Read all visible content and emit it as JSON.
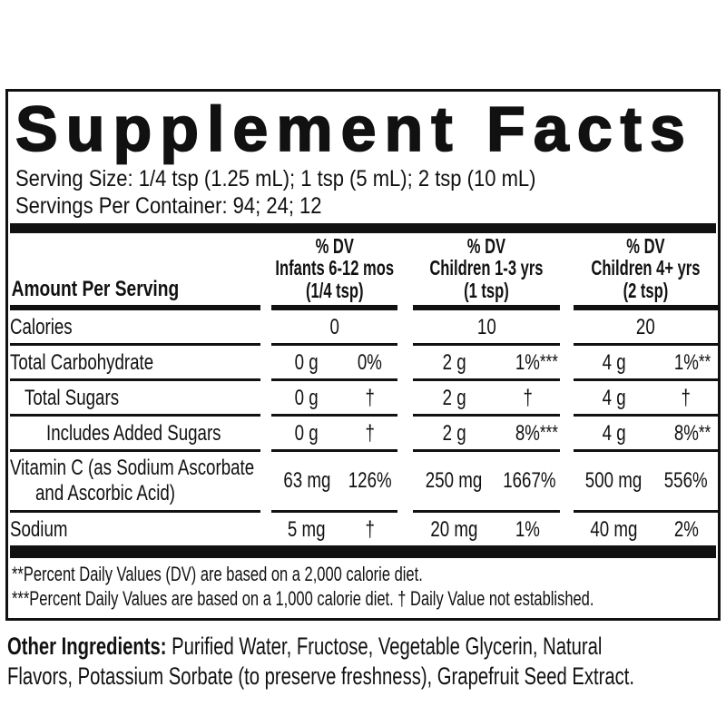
{
  "panel": {
    "title": "Supplement Facts",
    "serving_size": "Serving Size: 1/4 tsp (1.25 mL); 1 tsp (5 mL); 2 tsp (10 mL)",
    "servings_per_container": "Servings Per Container: 94; 24; 12",
    "header": {
      "amount_per_serving": "Amount Per Serving",
      "columns": [
        {
          "dv": "% DV",
          "group": "Infants 6-12 mos",
          "dose": "(1/4 tsp)"
        },
        {
          "dv": "% DV",
          "group": "Children 1-3 yrs",
          "dose": "(1 tsp)"
        },
        {
          "dv": "% DV",
          "group": "Children 4+ yrs",
          "dose": "(2 tsp)"
        }
      ]
    },
    "rows": [
      {
        "name": "Calories",
        "values": [
          "0",
          "10",
          "20"
        ]
      },
      {
        "name": "Total Carbohydrate",
        "cols": [
          {
            "amount": "0 g",
            "dv": "0%",
            "sup": ""
          },
          {
            "amount": "2 g",
            "dv": "1%",
            "sup": "***"
          },
          {
            "amount": "4 g",
            "dv": "1%",
            "sup": "**"
          }
        ]
      },
      {
        "name": "Total Sugars",
        "cols": [
          {
            "amount": "0 g",
            "dv": "†",
            "sup": ""
          },
          {
            "amount": "2 g",
            "dv": "†",
            "sup": ""
          },
          {
            "amount": "4 g",
            "dv": "†",
            "sup": ""
          }
        ]
      },
      {
        "name": "Includes Added Sugars",
        "cols": [
          {
            "amount": "0 g",
            "dv": "†",
            "sup": ""
          },
          {
            "amount": "2 g",
            "dv": "8%",
            "sup": "***"
          },
          {
            "amount": "4 g",
            "dv": "8%",
            "sup": "**"
          }
        ]
      },
      {
        "name": "Vitamin C (as Sodium Ascorbate",
        "name2": "and Ascorbic Acid)",
        "cols": [
          {
            "amount": "63 mg",
            "dv": "126%",
            "sup": ""
          },
          {
            "amount": "250 mg",
            "dv": "1667%",
            "sup": ""
          },
          {
            "amount": "500 mg",
            "dv": "556%",
            "sup": ""
          }
        ]
      },
      {
        "name": "Sodium",
        "cols": [
          {
            "amount": "5 mg",
            "dv": "†",
            "sup": ""
          },
          {
            "amount": "20 mg",
            "dv": "1%",
            "sup": ""
          },
          {
            "amount": "40 mg",
            "dv": "2%",
            "sup": ""
          }
        ]
      }
    ],
    "footnotes": [
      "**Percent Daily Values (DV) are based on a 2,000 calorie diet.",
      "***Percent Daily Values are based on a 1,000 calorie diet. † Daily Value not established."
    ]
  },
  "other_ingredients": {
    "label": "Other Ingredients:",
    "line1": " Purified Water, Fructose, Vegetable Glycerin, Natural",
    "line2": "Flavors, Potassium Sorbate (to preserve freshness), Grapefruit Seed Extract."
  },
  "colors": {
    "ink": "#111111",
    "background": "#ffffff"
  }
}
